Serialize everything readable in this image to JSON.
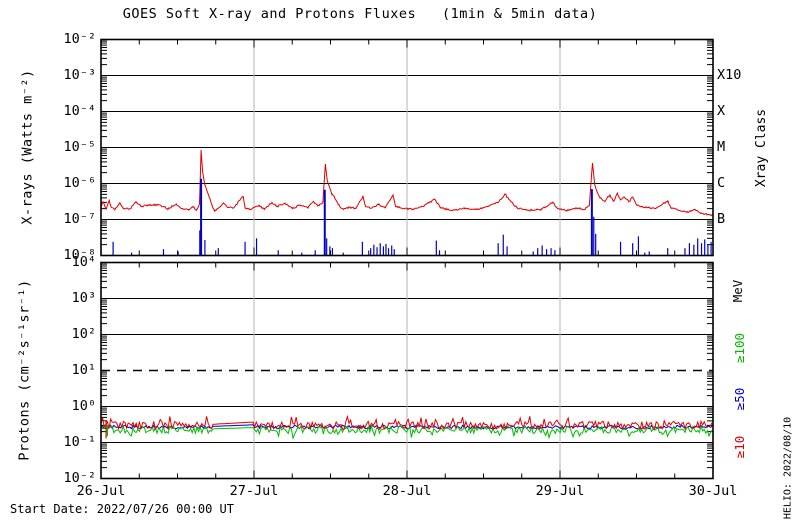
{
  "title": "GOES Soft X-ray and Protons Fluxes   (1min & 5min data)",
  "footer": "Start Date: 2022/07/26 00:00 UT",
  "watermark": "HELIO: 2022/08/10",
  "colors": {
    "xray_long": "#dd0000",
    "xray_short": "#0000cc",
    "protons_ge10": "#dd0000",
    "protons_ge50": "#0000cc",
    "protons_ge100": "#00bb00",
    "day_line": "#b4b4b4",
    "axis": "#000000"
  },
  "chart_data": {
    "type": "line",
    "title": "GOES Soft X-ray and Protons Fluxes   (1min & 5min data)",
    "x": {
      "unit": "hours since 2022/07/26 00:00 UT",
      "range": [
        0,
        96
      ],
      "major_tick_hours": 24,
      "minor_tick_hours": 6,
      "ticklabels": [
        "26-Jul",
        "27-Jul",
        "28-Jul",
        "29-Jul",
        "30-Jul"
      ],
      "day_lines_hours": [
        24,
        48,
        72
      ]
    },
    "panels": [
      {
        "id": "xray",
        "ylabel": "X-rays (Watts m⁻²)",
        "yexp_range": [
          -2,
          -8
        ],
        "yticklabels": [
          "10⁻²",
          "10⁻³",
          "10⁻⁴",
          "10⁻⁵",
          "10⁻⁶",
          "10⁻⁷",
          "10⁻⁸"
        ],
        "right_axis": {
          "title": "Xray Class",
          "labels": [
            {
              "text": "X10",
              "exp": -3,
              "color": "#000000"
            },
            {
              "text": "X",
              "exp": -4,
              "color": "#000000"
            },
            {
              "text": "M",
              "exp": -5,
              "color": "#000000"
            },
            {
              "text": "C",
              "exp": -6,
              "color": "#000000"
            },
            {
              "text": "B",
              "exp": -7,
              "color": "#000000"
            }
          ]
        },
        "series": [
          {
            "name": "xray-long",
            "color": "#dd0000",
            "draw": "line",
            "noise_decades": 0.045,
            "points": [
              [
                0,
                2.3e-07
              ],
              [
                0.3,
                3.1e-07
              ],
              [
                0.8,
                1.9e-07
              ],
              [
                1.3,
                3.4e-07
              ],
              [
                1.6,
                2.2e-07
              ],
              [
                2.2,
                1.9e-07
              ],
              [
                2.9,
                2.9e-07
              ],
              [
                3.5,
                2e-07
              ],
              [
                4.6,
                2e-07
              ],
              [
                5.5,
                3.1e-07
              ],
              [
                6.4,
                2.3e-07
              ],
              [
                7.5,
                2.5e-07
              ],
              [
                9.0,
                2.6e-07
              ],
              [
                10.5,
                2e-07
              ],
              [
                11.8,
                2.7e-07
              ],
              [
                12.6,
                2e-07
              ],
              [
                13.8,
                1.9e-07
              ],
              [
                14.4,
                2.3e-07
              ],
              [
                15.0,
                1.8e-07
              ],
              [
                15.45,
                2.8e-07
              ],
              [
                15.7,
                8.5e-06
              ],
              [
                15.95,
                2e-06
              ],
              [
                16.3,
                9e-07
              ],
              [
                17.0,
                4e-07
              ],
              [
                17.8,
                1.7e-07
              ],
              [
                18.6,
                2.2e-07
              ],
              [
                19.2,
                2.9e-07
              ],
              [
                19.8,
                2.2e-07
              ],
              [
                20.8,
                2.1e-07
              ],
              [
                22.3,
                4.5e-07
              ],
              [
                22.6,
                2.1e-07
              ],
              [
                23.5,
                1.9e-07
              ],
              [
                24.8,
                2.5e-07
              ],
              [
                25.6,
                1.9e-07
              ],
              [
                26.8,
                2.9e-07
              ],
              [
                27.6,
                2.3e-07
              ],
              [
                28.8,
                2.8e-07
              ],
              [
                30.0,
                2e-07
              ],
              [
                31.2,
                2.5e-07
              ],
              [
                32.4,
                2.1e-07
              ],
              [
                33.3,
                3.2e-07
              ],
              [
                34.0,
                2.4e-07
              ],
              [
                34.8,
                3e-07
              ],
              [
                35.2,
                3.5e-06
              ],
              [
                35.5,
                1.2e-06
              ],
              [
                36.2,
                5e-07
              ],
              [
                36.5,
                4.5e-07
              ],
              [
                37.2,
                2.6e-07
              ],
              [
                38.0,
                1.9e-07
              ],
              [
                39.0,
                2.2e-07
              ],
              [
                40.0,
                2e-07
              ],
              [
                41.1,
                4.5e-07
              ],
              [
                41.5,
                2.3e-07
              ],
              [
                42.5,
                2.1e-07
              ],
              [
                43.6,
                2.6e-07
              ],
              [
                44.6,
                2.1e-07
              ],
              [
                45.8,
                4.8e-07
              ],
              [
                46.2,
                2.3e-07
              ],
              [
                47.5,
                2e-07
              ],
              [
                49.0,
                1.9e-07
              ],
              [
                50.5,
                2.3e-07
              ],
              [
                52.3,
                3.6e-07
              ],
              [
                53.3,
                2.1e-07
              ],
              [
                55.0,
                1.8e-07
              ],
              [
                57.0,
                2e-07
              ],
              [
                59.0,
                1.9e-07
              ],
              [
                61.0,
                2.4e-07
              ],
              [
                62.4,
                3.1e-07
              ],
              [
                63.4,
                5e-07
              ],
              [
                64.3,
                3.1e-07
              ],
              [
                65.3,
                2.1e-07
              ],
              [
                67.0,
                1.8e-07
              ],
              [
                69.0,
                1.9e-07
              ],
              [
                70.9,
                3e-07
              ],
              [
                71.6,
                2e-07
              ],
              [
                73.0,
                1.8e-07
              ],
              [
                74.5,
                2.1e-07
              ],
              [
                75.8,
                1.9e-07
              ],
              [
                76.6,
                2.4e-07
              ],
              [
                77.1,
                3.7e-06
              ],
              [
                77.45,
                9e-07
              ],
              [
                78.2,
                4.2e-07
              ],
              [
                79.0,
                3.2e-07
              ],
              [
                79.8,
                4.8e-07
              ],
              [
                80.4,
                3.2e-07
              ],
              [
                81.0,
                5.4e-07
              ],
              [
                81.5,
                3.5e-07
              ],
              [
                82.1,
                4.2e-07
              ],
              [
                82.8,
                3.1e-07
              ],
              [
                83.4,
                4.2e-07
              ],
              [
                84.0,
                2.6e-07
              ],
              [
                85.0,
                2.2e-07
              ],
              [
                86.0,
                2.1e-07
              ],
              [
                87.0,
                2e-07
              ],
              [
                88.9,
                3.3e-07
              ],
              [
                89.4,
                2.1e-07
              ],
              [
                90.5,
                1.8e-07
              ],
              [
                92.0,
                1.6e-07
              ],
              [
                93.2,
                1.9e-07
              ],
              [
                94.0,
                1.5e-07
              ],
              [
                95.0,
                1.4e-07
              ],
              [
                96,
                1.3e-07
              ]
            ]
          },
          {
            "name": "xray-short",
            "color": "#0000cc",
            "draw": "spikes",
            "baseline": 1e-08,
            "spikes": [
              [
                1.9,
                2.4e-08
              ],
              [
                4.8,
                1.2e-08
              ],
              [
                9.8,
                1.5e-08
              ],
              [
                12.1,
                1.3e-08
              ],
              [
                15.5,
                5e-08
              ],
              [
                15.7,
                1.35e-06,
                2
              ],
              [
                16.3,
                2.7e-08
              ],
              [
                18.4,
                1.6e-08
              ],
              [
                22.6,
                2.4e-08
              ],
              [
                24.4,
                3e-08
              ],
              [
                27.8,
                1.4e-08
              ],
              [
                31.5,
                1.2e-08
              ],
              [
                33.6,
                1.4e-08
              ],
              [
                35.1,
                6.7e-07,
                2
              ],
              [
                35.4,
                3e-08
              ],
              [
                35.9,
                1.8e-08
              ],
              [
                36.3,
                1.6e-08
              ],
              [
                38.0,
                1.2e-08
              ],
              [
                41.0,
                2.4e-08
              ],
              [
                42.3,
                1.6e-08
              ],
              [
                42.8,
                2e-08
              ],
              [
                43.3,
                1.7e-08
              ],
              [
                43.8,
                2.2e-08
              ],
              [
                44.3,
                1.8e-08
              ],
              [
                44.7,
                2.1e-08
              ],
              [
                45.1,
                1.6e-08
              ],
              [
                45.6,
                1.9e-08
              ],
              [
                46.0,
                1.5e-08
              ],
              [
                52.6,
                2.6e-08
              ],
              [
                53.1,
                1.4e-08
              ],
              [
                62.3,
                2.2e-08
              ],
              [
                63.1,
                3.8e-08
              ],
              [
                63.7,
                1.8e-08
              ],
              [
                67.8,
                1.3e-08
              ],
              [
                68.5,
                1.6e-08
              ],
              [
                69.2,
                1.9e-08
              ],
              [
                69.9,
                1.5e-08
              ],
              [
                70.6,
                1.6e-08
              ],
              [
                71.2,
                1.4e-08
              ],
              [
                77.0,
                7e-07,
                2
              ],
              [
                77.3,
                1.2e-07
              ],
              [
                77.6,
                4e-08
              ],
              [
                81.5,
                2.4e-08
              ],
              [
                83.4,
                2.2e-08
              ],
              [
                84.3,
                3.4e-08
              ],
              [
                85.3,
                1.2e-08
              ],
              [
                86.0,
                1.3e-08
              ],
              [
                88.9,
                1.6e-08
              ],
              [
                91.6,
                1.6e-08
              ],
              [
                92.3,
                2.2e-08
              ],
              [
                93.0,
                2e-08
              ],
              [
                93.6,
                3e-08
              ],
              [
                94.2,
                2.2e-08
              ],
              [
                94.7,
                2.8e-08
              ],
              [
                95.2,
                2e-08
              ],
              [
                95.7,
                2.4e-08
              ]
            ]
          }
        ]
      },
      {
        "id": "protons",
        "ylabel": "Protons (cm⁻²s⁻¹sr⁻¹)",
        "yexp_range": [
          4,
          -2
        ],
        "yticklabels": [
          "10⁴",
          "10³",
          "10²",
          "10¹",
          "10⁰",
          "10⁻¹",
          "10⁻²"
        ],
        "right_axis": {
          "title": "MeV",
          "title_exp": 3.2,
          "labels": [
            {
              "text": "≥100",
              "exp": 1.63,
              "color": "#00bb00"
            },
            {
              "text": "≥50",
              "exp": 0.21,
              "color": "#0000cc"
            },
            {
              "text": "≥10",
              "exp": -1.12,
              "color": "#dd0000"
            }
          ]
        },
        "threshold": {
          "value": 10,
          "style": "dashed"
        },
        "series": [
          {
            "name": "protons ≥50 MeV",
            "color": "#0000cc",
            "draw": "noisy",
            "base": 0.27,
            "noise_decades": 0.05,
            "spike_dir": 0,
            "gap": {
              "start": 17.5,
              "end": 23.9,
              "from": 0.28,
              "to": 0.31
            }
          },
          {
            "name": "protons ≥100 MeV",
            "color": "#00bb00",
            "draw": "noisy",
            "base": 0.225,
            "noise_decades": 0.1,
            "spike_dir": -1,
            "gap": {
              "start": 17.5,
              "end": 23.9,
              "from": 0.24,
              "to": 0.26
            }
          },
          {
            "name": "protons ≥10 MeV",
            "color": "#dd0000",
            "draw": "noisy",
            "base": 0.3,
            "noise_decades": 0.11,
            "spike_dir": 1,
            "gap": {
              "start": 17.5,
              "end": 23.9,
              "from": 0.32,
              "to": 0.37
            }
          }
        ],
        "event_bars": [
          {
            "h": 0.8,
            "from": 0.13,
            "to": 0.42,
            "color": "#dd0000"
          },
          {
            "h": 1.0,
            "from": 0.15,
            "to": 0.3,
            "color": "#00bb00"
          }
        ]
      }
    ]
  }
}
